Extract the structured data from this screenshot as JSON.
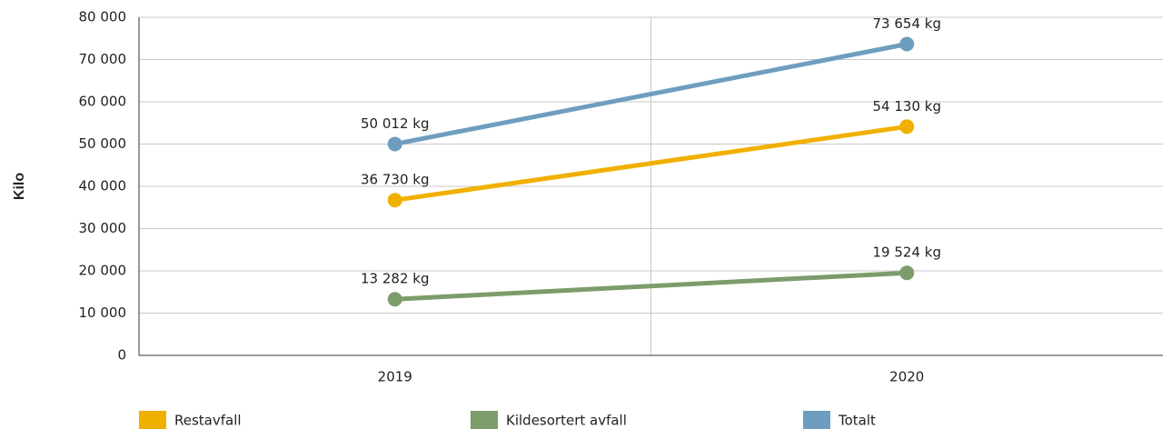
{
  "chart_data": {
    "type": "line",
    "y_label": "Kilo",
    "categories": [
      "2019",
      "2020"
    ],
    "series": [
      {
        "name": "Restavfall",
        "color": "#f0b000",
        "values": [
          36730,
          54130
        ],
        "value_labels": [
          "36 730 kg",
          "54 130 kg"
        ]
      },
      {
        "name": "Kildesortert avfall",
        "color": "#7c9c6a",
        "values": [
          13282,
          19524
        ],
        "value_labels": [
          "13 282 kg",
          "19 524 kg"
        ]
      },
      {
        "name": "Totalt",
        "color": "#6e9ebf",
        "values": [
          50012,
          73654
        ],
        "value_labels": [
          "50 012 kg",
          "73 654 kg"
        ]
      }
    ],
    "ylim": [
      0,
      80000
    ],
    "yticks": [
      {
        "value": 0,
        "label": "0"
      },
      {
        "value": 10000,
        "label": "10 000"
      },
      {
        "value": 20000,
        "label": "20 000"
      },
      {
        "value": 30000,
        "label": "30 000"
      },
      {
        "value": 40000,
        "label": "40 000"
      },
      {
        "value": 50000,
        "label": "50 000"
      },
      {
        "value": 60000,
        "label": "60 000"
      },
      {
        "value": 70000,
        "label": "70 000"
      },
      {
        "value": 80000,
        "label": "80 000"
      }
    ],
    "grid": true,
    "legend": "bottom"
  }
}
